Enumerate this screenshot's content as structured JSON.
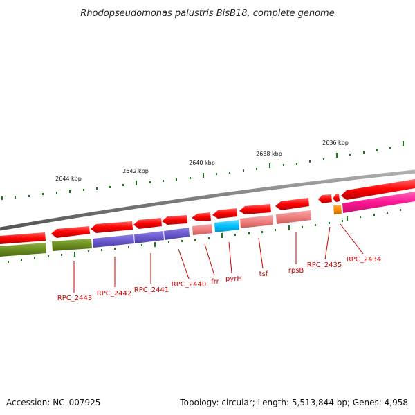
{
  "title": "Rhodopseudomonas palustris BisB18, complete genome",
  "accession": "Accession: NC_007925",
  "topology": "Topology: circular; Length: 5,513,844 bp; Genes: 4,958",
  "scale_labels": [
    "2644 kbp",
    "2642 kbp",
    "2640 kbp",
    "2638 kbp",
    "2636 kbp"
  ],
  "genes": [
    {
      "name": "RPC_2443",
      "color": "#6b8e23"
    },
    {
      "name": "RPC_2442",
      "color": "#6a5acd"
    },
    {
      "name": "RPC_2441",
      "color": "#6a5acd"
    },
    {
      "name": "RPC_2440",
      "color": "#6a5acd"
    },
    {
      "name": "frr",
      "color": "#f08080"
    },
    {
      "name": "pyrH",
      "color": "#00bfff"
    },
    {
      "name": "tsf",
      "color": "#f08080"
    },
    {
      "name": "rpsB",
      "color": "#f08080"
    },
    {
      "name": "RPC_2435",
      "color": "#ff8c00"
    },
    {
      "name": "RPC_2434",
      "color": "#ff1493"
    }
  ],
  "colors": {
    "cds": "#ff0000",
    "backbone": "#808080",
    "ticks": "#1a7a1a",
    "label": "#cc0000"
  }
}
